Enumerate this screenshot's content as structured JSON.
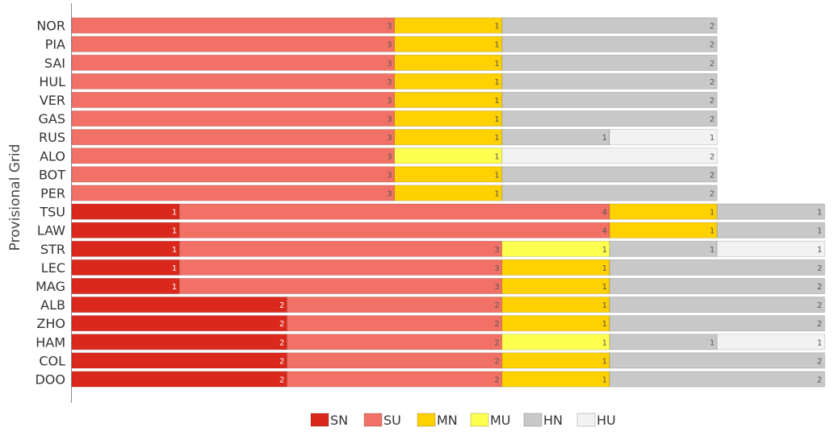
{
  "chart_data": {
    "type": "bar",
    "orientation": "horizontal",
    "stacked": true,
    "ylabel": "Provisional Grid",
    "xlabel": "",
    "title": "",
    "grid": false,
    "legend_position": "bottom-center",
    "categories": [
      "NOR",
      "PIA",
      "SAI",
      "HUL",
      "VER",
      "GAS",
      "RUS",
      "ALO",
      "BOT",
      "PER",
      "TSU",
      "LAW",
      "STR",
      "LEC",
      "MAG",
      "ALB",
      "ZHO",
      "HAM",
      "COL",
      "DOO"
    ],
    "compounds": {
      "SN": "#da291c",
      "SU": "#f27166",
      "MN": "#ffd100",
      "MU": "#ffff4f",
      "HN": "#c8c8c8",
      "HU": "#f2f2f2"
    },
    "legend": [
      "SN",
      "SU",
      "MN",
      "MU",
      "HN",
      "HU"
    ],
    "rows": [
      [
        [
          "SU",
          3
        ],
        [
          "MN",
          1
        ],
        [
          "HN",
          2
        ]
      ],
      [
        [
          "SU",
          3
        ],
        [
          "MN",
          1
        ],
        [
          "HN",
          2
        ]
      ],
      [
        [
          "SU",
          3
        ],
        [
          "MN",
          1
        ],
        [
          "HN",
          2
        ]
      ],
      [
        [
          "SU",
          3
        ],
        [
          "MN",
          1
        ],
        [
          "HN",
          2
        ]
      ],
      [
        [
          "SU",
          3
        ],
        [
          "MN",
          1
        ],
        [
          "HN",
          2
        ]
      ],
      [
        [
          "SU",
          3
        ],
        [
          "MN",
          1
        ],
        [
          "HN",
          2
        ]
      ],
      [
        [
          "SU",
          3
        ],
        [
          "MN",
          1
        ],
        [
          "HN",
          1
        ],
        [
          "HU",
          1
        ]
      ],
      [
        [
          "SU",
          3
        ],
        [
          "MU",
          1
        ],
        [
          "HU",
          2
        ]
      ],
      [
        [
          "SU",
          3
        ],
        [
          "MN",
          1
        ],
        [
          "HN",
          2
        ]
      ],
      [
        [
          "SU",
          3
        ],
        [
          "MN",
          1
        ],
        [
          "HN",
          2
        ]
      ],
      [
        [
          "SN",
          1
        ],
        [
          "SU",
          4
        ],
        [
          "MN",
          1
        ],
        [
          "HN",
          1
        ]
      ],
      [
        [
          "SN",
          1
        ],
        [
          "SU",
          4
        ],
        [
          "MN",
          1
        ],
        [
          "HN",
          1
        ]
      ],
      [
        [
          "SN",
          1
        ],
        [
          "SU",
          3
        ],
        [
          "MU",
          1
        ],
        [
          "HN",
          1
        ],
        [
          "HU",
          1
        ]
      ],
      [
        [
          "SN",
          1
        ],
        [
          "SU",
          3
        ],
        [
          "MN",
          1
        ],
        [
          "HN",
          2
        ]
      ],
      [
        [
          "SN",
          1
        ],
        [
          "SU",
          3
        ],
        [
          "MN",
          1
        ],
        [
          "HN",
          2
        ]
      ],
      [
        [
          "SN",
          2
        ],
        [
          "SU",
          2
        ],
        [
          "MN",
          1
        ],
        [
          "HN",
          2
        ]
      ],
      [
        [
          "SN",
          2
        ],
        [
          "SU",
          2
        ],
        [
          "MN",
          1
        ],
        [
          "HN",
          2
        ]
      ],
      [
        [
          "SN",
          2
        ],
        [
          "SU",
          2
        ],
        [
          "MU",
          1
        ],
        [
          "HN",
          1
        ],
        [
          "HU",
          1
        ]
      ],
      [
        [
          "SN",
          2
        ],
        [
          "SU",
          2
        ],
        [
          "MN",
          1
        ],
        [
          "HN",
          2
        ]
      ],
      [
        [
          "SN",
          2
        ],
        [
          "SU",
          2
        ],
        [
          "MN",
          1
        ],
        [
          "HN",
          2
        ]
      ]
    ]
  }
}
